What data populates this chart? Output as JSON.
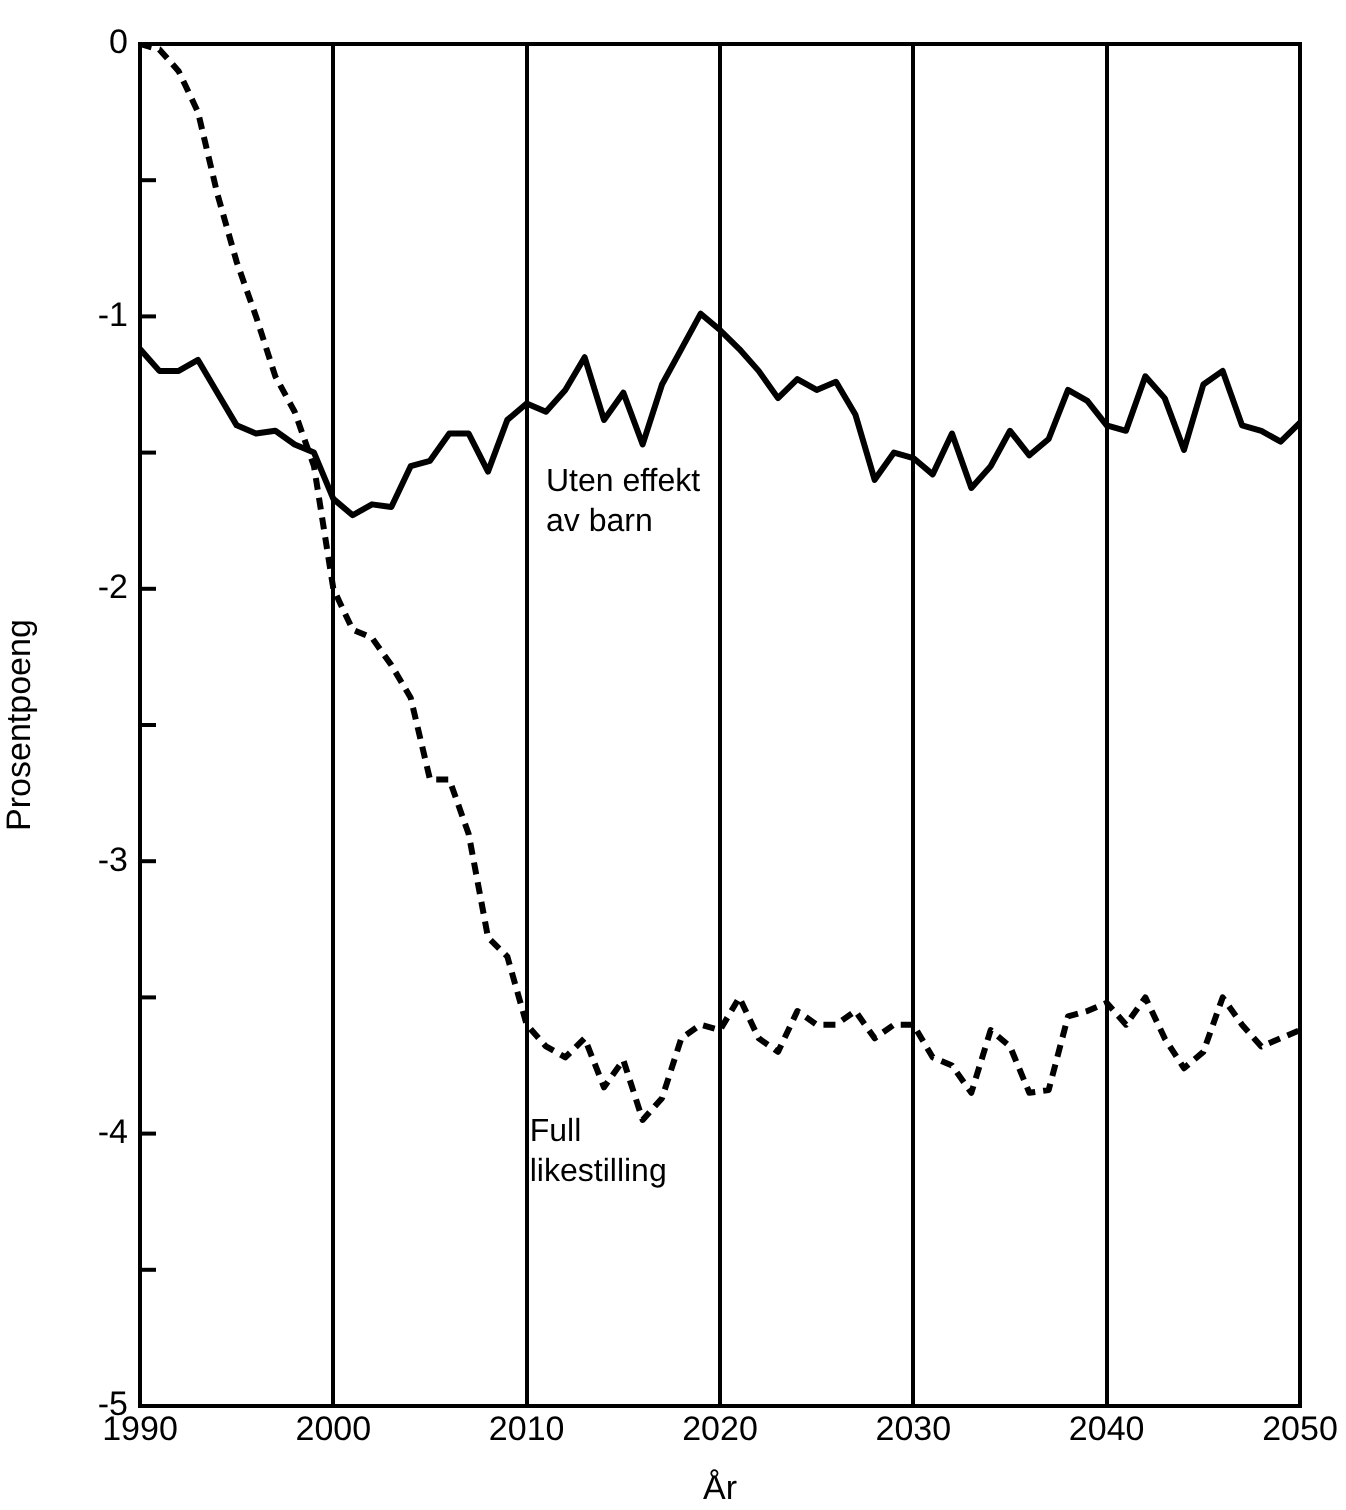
{
  "chart_data": {
    "type": "line",
    "xlabel": "År",
    "ylabel": "Prosentpoeng",
    "x": [
      1990,
      1991,
      1992,
      1993,
      1994,
      1995,
      1996,
      1997,
      1998,
      1999,
      2000,
      2001,
      2002,
      2003,
      2004,
      2005,
      2006,
      2007,
      2008,
      2009,
      2010,
      2011,
      2012,
      2013,
      2014,
      2015,
      2016,
      2017,
      2018,
      2019,
      2020,
      2021,
      2022,
      2023,
      2024,
      2025,
      2026,
      2027,
      2028,
      2029,
      2030,
      2031,
      2032,
      2033,
      2034,
      2035,
      2036,
      2037,
      2038,
      2039,
      2040,
      2041,
      2042,
      2043,
      2044,
      2045,
      2046,
      2047,
      2048,
      2049,
      2050
    ],
    "series": [
      {
        "name": "Uten effekt av barn",
        "color": "#000000",
        "line_style": "solid",
        "values": [
          -1.12,
          -1.2,
          -1.2,
          -1.16,
          -1.28,
          -1.4,
          -1.43,
          -1.42,
          -1.47,
          -1.5,
          -1.67,
          -1.73,
          -1.69,
          -1.7,
          -1.55,
          -1.53,
          -1.43,
          -1.43,
          -1.57,
          -1.38,
          -1.32,
          -1.35,
          -1.27,
          -1.15,
          -1.38,
          -1.28,
          -1.47,
          -1.25,
          -1.12,
          -0.99,
          -1.05,
          -1.12,
          -1.2,
          -1.3,
          -1.23,
          -1.27,
          -1.24,
          -1.36,
          -1.6,
          -1.5,
          -1.52,
          -1.58,
          -1.43,
          -1.63,
          -1.55,
          -1.42,
          -1.51,
          -1.45,
          -1.27,
          -1.31,
          -1.4,
          -1.42,
          -1.22,
          -1.3,
          -1.49,
          -1.25,
          -1.2,
          -1.4,
          -1.42,
          -1.46,
          -1.39
        ]
      },
      {
        "name": "Full likestilling",
        "color": "#000000",
        "line_style": "dashed",
        "values": [
          0,
          -0.02,
          -0.1,
          -0.25,
          -0.55,
          -0.8,
          -1.0,
          -1.22,
          -1.35,
          -1.55,
          -2.0,
          -2.15,
          -2.18,
          -2.28,
          -2.4,
          -2.7,
          -2.7,
          -2.9,
          -3.28,
          -3.35,
          -3.6,
          -3.68,
          -3.72,
          -3.65,
          -3.83,
          -3.73,
          -3.95,
          -3.87,
          -3.65,
          -3.6,
          -3.62,
          -3.5,
          -3.65,
          -3.7,
          -3.55,
          -3.6,
          -3.6,
          -3.55,
          -3.65,
          -3.6,
          -3.6,
          -3.72,
          -3.75,
          -3.85,
          -3.62,
          -3.68,
          -3.85,
          -3.84,
          -3.57,
          -3.55,
          -3.52,
          -3.6,
          -3.5,
          -3.65,
          -3.76,
          -3.7,
          -3.5,
          -3.6,
          -3.68,
          -3.65,
          -3.62
        ]
      }
    ],
    "xlim": [
      1990,
      2050
    ],
    "xticks": [
      1990,
      2000,
      2010,
      2020,
      2030,
      2040,
      2050
    ],
    "ylim": [
      -5,
      0
    ],
    "yticks": [
      -5,
      {
        "value": -4.5,
        "label": null
      },
      -4,
      {
        "value": -3.5,
        "label": null
      },
      -3,
      {
        "value": -2.5,
        "label": null
      },
      -2,
      {
        "value": -1.5,
        "label": null
      },
      -1,
      {
        "value": -0.5,
        "label": null
      },
      0
    ],
    "grid": "x",
    "legend": false,
    "marker": "none"
  }
}
